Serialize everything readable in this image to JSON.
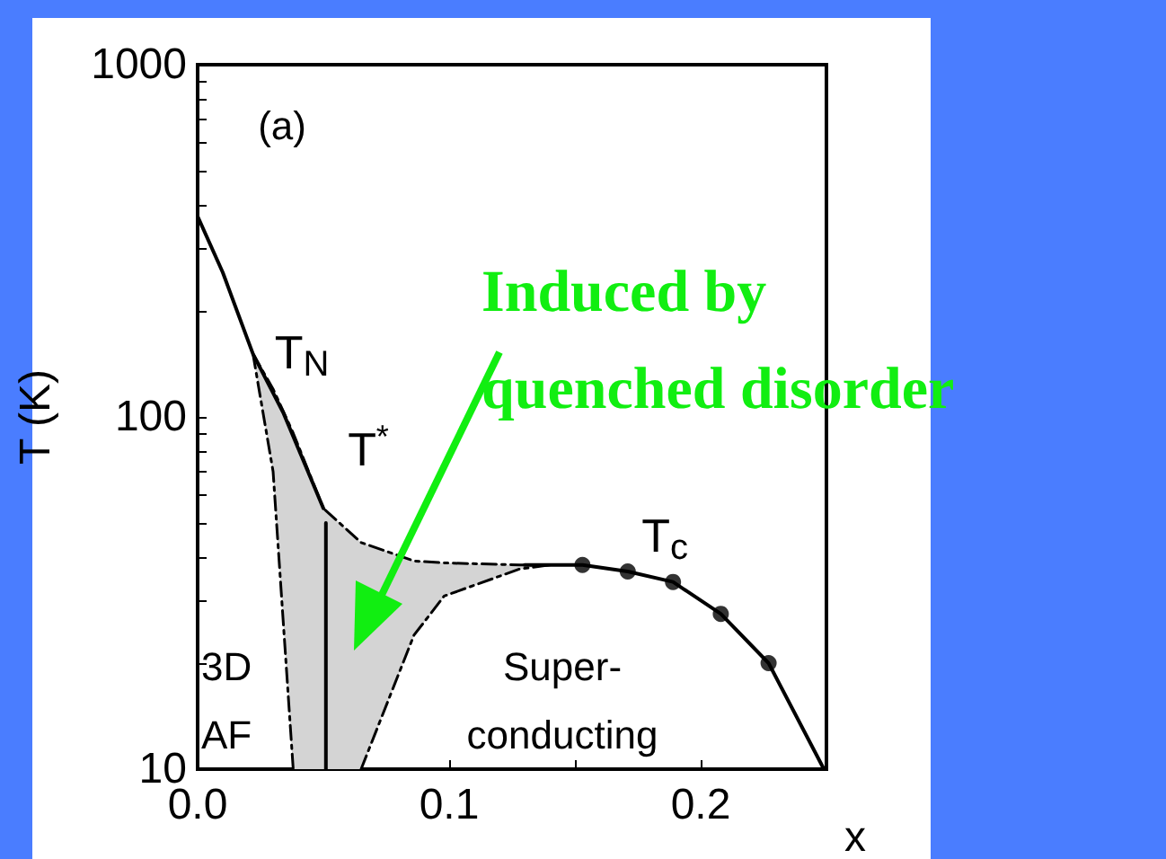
{
  "chart_data": {
    "type": "line",
    "xlabel": "x",
    "ylabel": "T (K)",
    "log": "y",
    "xlim": [
      0,
      0.25
    ],
    "xticks": [
      {
        "value": 0,
        "label": "0.0"
      },
      {
        "value": 0.05,
        "label": null
      },
      {
        "value": 0.1,
        "label": "0.1"
      },
      {
        "value": 0.15,
        "label": null
      },
      {
        "value": 0.2,
        "label": "0.2"
      }
    ],
    "ylim": [
      10,
      1000
    ],
    "yticks": [
      10,
      {
        "value": 20,
        "label": null
      },
      {
        "value": 30,
        "label": null
      },
      {
        "value": 40,
        "label": null
      },
      {
        "value": 50,
        "label": null
      },
      {
        "value": 60,
        "label": null
      },
      {
        "value": 70,
        "label": null
      },
      {
        "value": 80,
        "label": null
      },
      {
        "value": 90,
        "label": null
      },
      100,
      {
        "value": 200,
        "label": null
      },
      {
        "value": 300,
        "label": null
      },
      {
        "value": 400,
        "label": null
      },
      {
        "value": 500,
        "label": null
      },
      {
        "value": 600,
        "label": null
      },
      {
        "value": 700,
        "label": null
      },
      {
        "value": 800,
        "label": null
      },
      {
        "value": 900,
        "label": null
      },
      1000
    ],
    "series": [
      {
        "color": "#000000",
        "line_style": "solid",
        "marker": "none",
        "x": [
          0,
          0.01,
          0.022,
          0.034,
          0.05
        ],
        "values": [
          371,
          257,
          151,
          103,
          55
        ]
      },
      {
        "color": "#000000",
        "line_style": "dashed",
        "marker": "none",
        "x": [
          0.022,
          0.03,
          0.038,
          0.05,
          0.065,
          0.086,
          0.098,
          0.128,
          0.14
        ],
        "values": [
          151,
          120,
          90,
          55,
          44,
          39,
          38.5,
          38,
          38
        ],
        "lower": [
          151,
          70,
          10,
          10,
          10,
          24,
          31,
          37,
          38
        ],
        "upper": [
          151,
          120,
          90,
          55,
          44,
          39,
          38.5,
          38,
          38
        ]
      },
      {
        "color": "#000000",
        "line_style": "dashed",
        "marker": "none",
        "x": [
          0.022,
          0.03,
          0.038
        ],
        "values": [
          151,
          70,
          10
        ]
      },
      {
        "color": "#000000",
        "line_style": "dashed",
        "marker": "none",
        "x": [
          0.065,
          0.086,
          0.098,
          0.128,
          0.14
        ],
        "values": [
          10,
          24,
          31,
          37,
          38
        ]
      },
      {
        "color": "#000000",
        "line_style": "solid",
        "marker": "none",
        "x": [
          0.051,
          0.051
        ],
        "values": [
          10,
          50
        ]
      },
      {
        "color": "#000000",
        "line_style": "solid",
        "marker": "none",
        "x": [
          0.13,
          0.153,
          0.171,
          0.189,
          0.208,
          0.227,
          0.249
        ],
        "values": [
          38,
          38,
          36.4,
          34,
          27.6,
          20,
          10
        ]
      },
      {
        "type": "scatter",
        "color": "#000000",
        "marker": "circle",
        "x": [
          0.153,
          0.171,
          0.189,
          0.208,
          0.227
        ],
        "values": [
          38,
          36.4,
          34,
          27.6,
          20
        ]
      }
    ],
    "annotations": [
      "(a)",
      "T$_{N}$",
      "T$^{*}$",
      "T$_{c}$",
      "3D\nAF",
      "Super-\nconducting",
      "Induced by\nquenched disorder"
    ]
  }
}
